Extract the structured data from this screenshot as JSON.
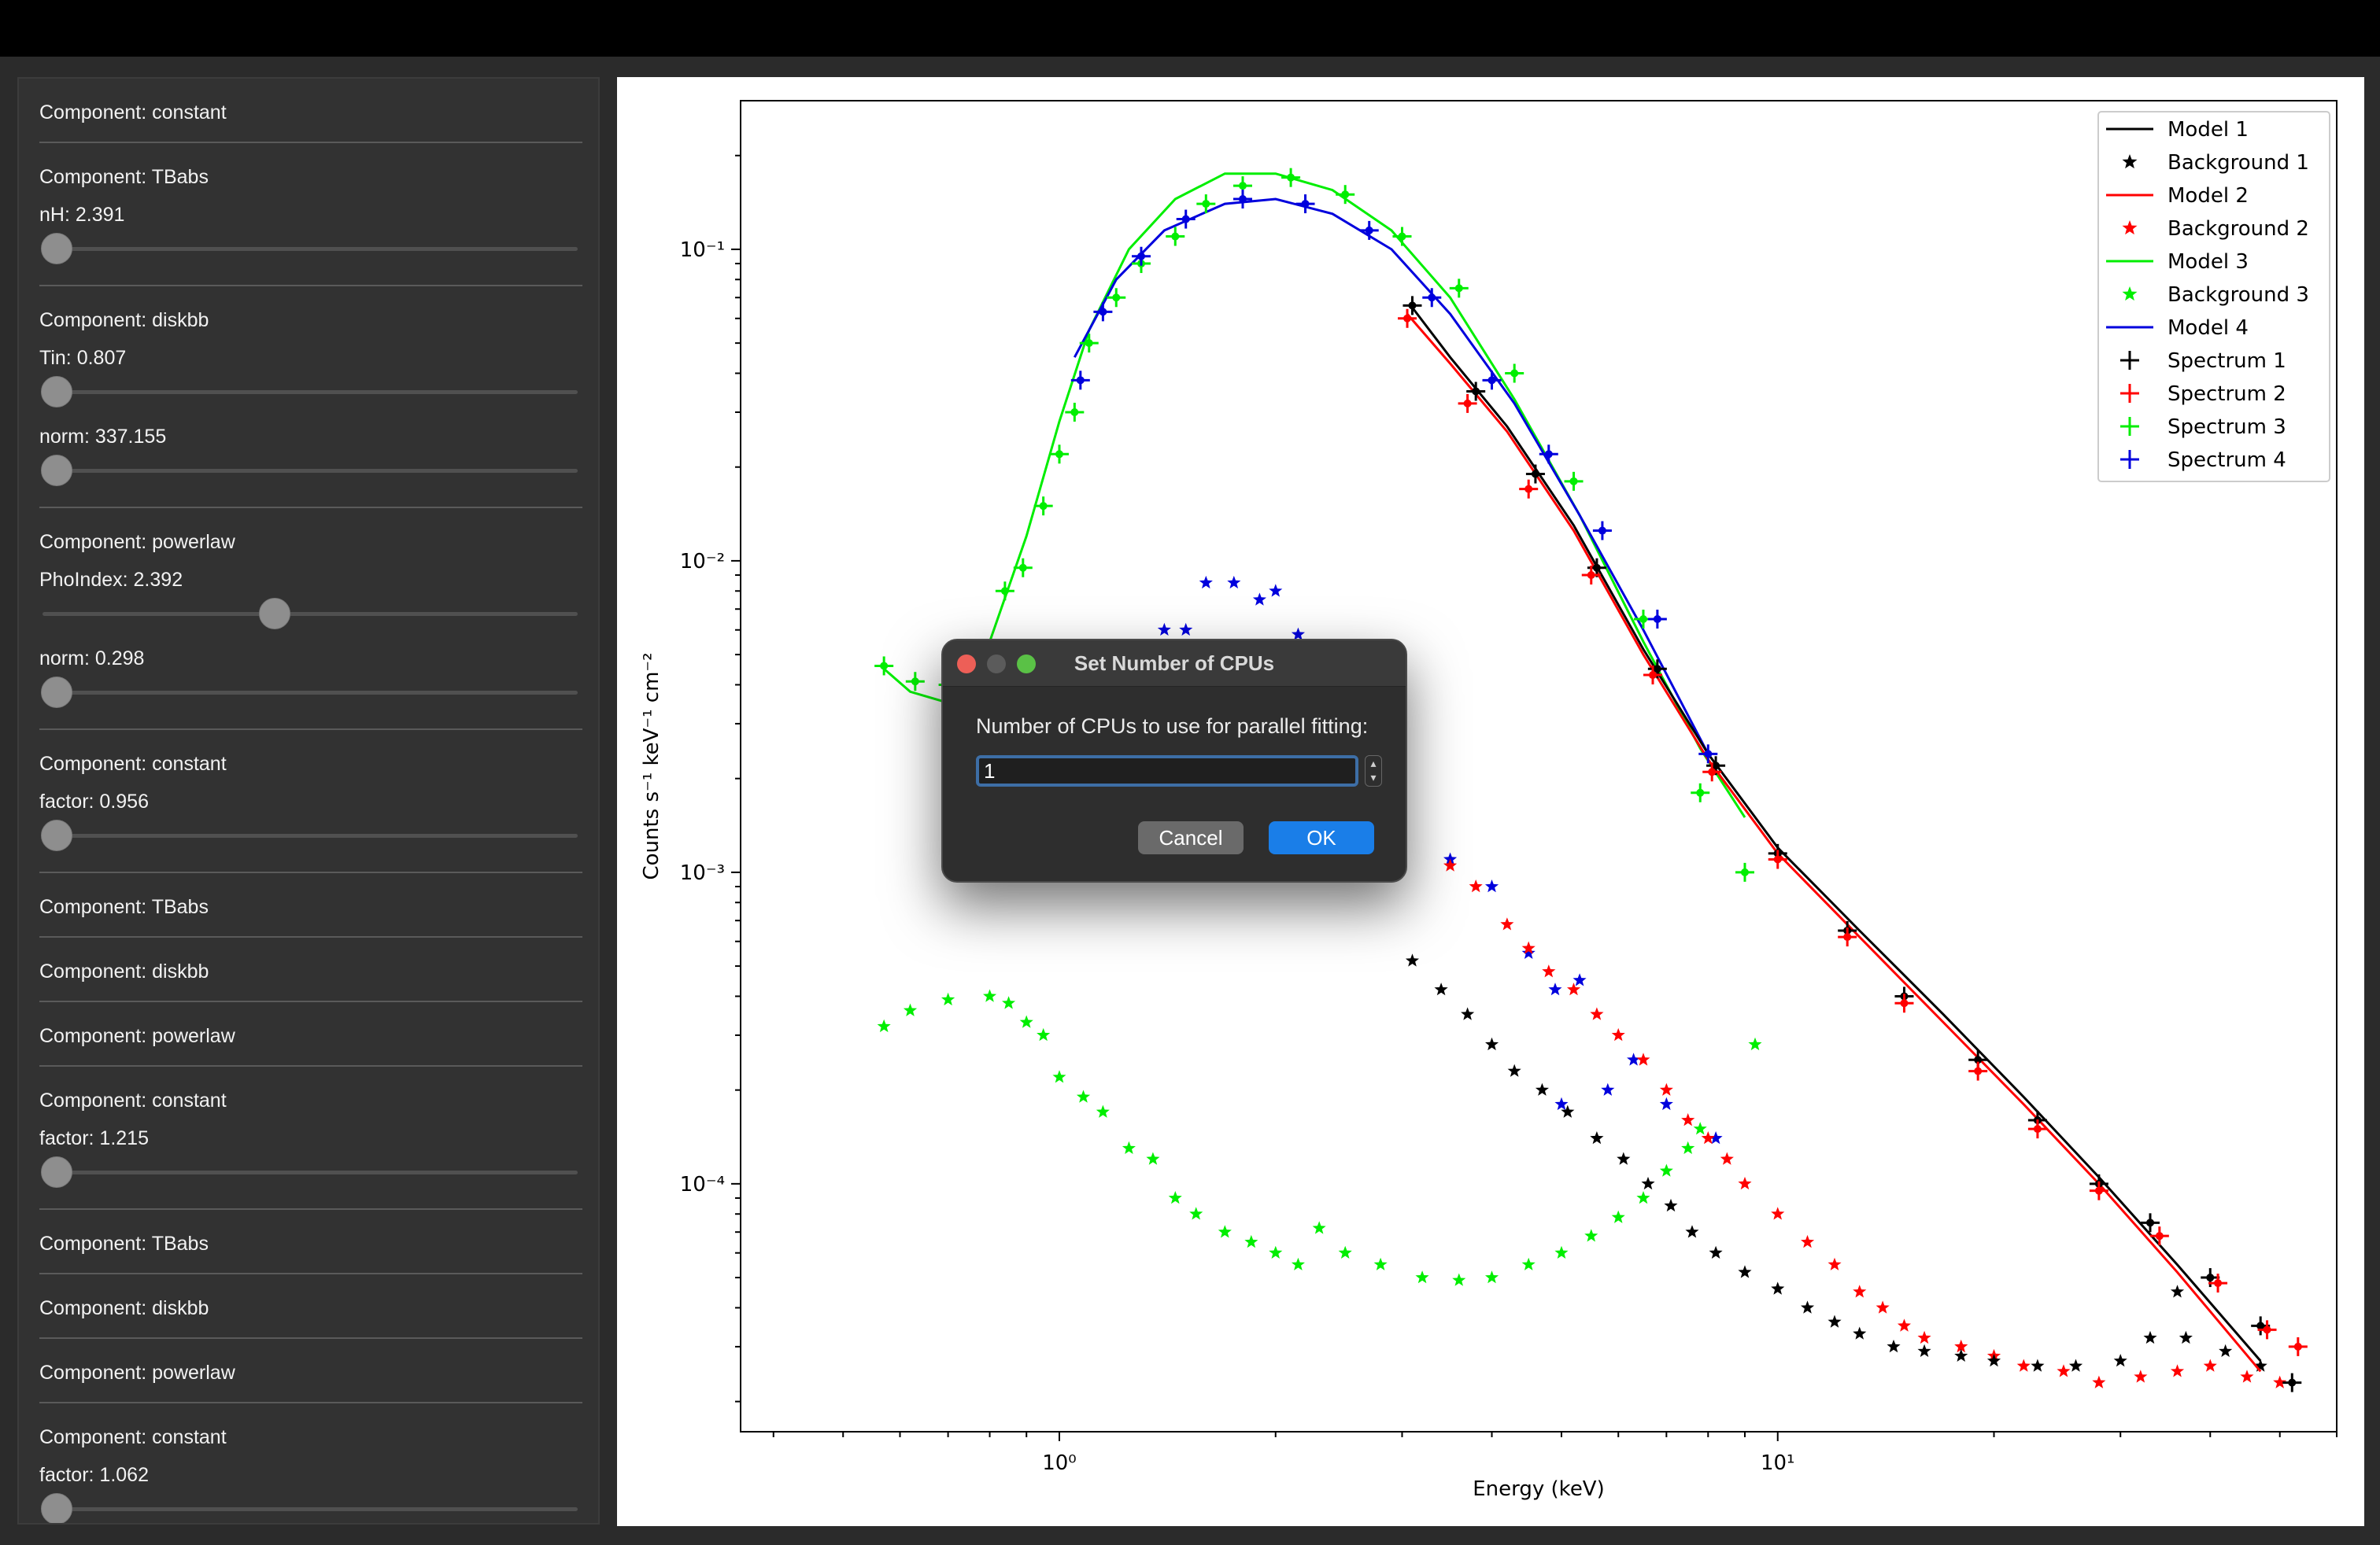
{
  "sidebar": {
    "sections": [
      {
        "title": "Component: constant",
        "params": []
      },
      {
        "title": "Component: TBabs",
        "params": [
          {
            "label": "nH: 2.391",
            "position": 0.0
          }
        ]
      },
      {
        "title": "Component: diskbb",
        "params": [
          {
            "label": "Tin: 0.807",
            "position": 0.0
          },
          {
            "label": "norm: 337.155",
            "position": 0.0
          }
        ]
      },
      {
        "title": "Component: powerlaw",
        "params": [
          {
            "label": "PhoIndex: 2.392",
            "position": 0.43
          },
          {
            "label": "norm: 0.298",
            "position": 0.0
          }
        ]
      },
      {
        "title": "Component: constant",
        "params": [
          {
            "label": "factor: 0.956",
            "position": 0.0
          }
        ]
      },
      {
        "title": "Component: TBabs",
        "params": []
      },
      {
        "title": "Component: diskbb",
        "params": []
      },
      {
        "title": "Component: powerlaw",
        "params": []
      },
      {
        "title": "Component: constant",
        "params": [
          {
            "label": "factor: 1.215",
            "position": 0.0
          }
        ]
      },
      {
        "title": "Component: TBabs",
        "params": []
      },
      {
        "title": "Component: diskbb",
        "params": []
      },
      {
        "title": "Component: powerlaw",
        "params": []
      },
      {
        "title": "Component: constant",
        "params": [
          {
            "label": "factor: 1.062",
            "position": 0.0
          }
        ]
      }
    ]
  },
  "chart_data": {
    "type": "scatter",
    "xlabel": "Energy (keV)",
    "ylabel": "Counts s⁻¹ keV⁻¹ cm⁻²",
    "xscale": "log",
    "yscale": "log",
    "xlim": [
      0.36,
      60
    ],
    "ylim": [
      1.6e-05,
      0.3
    ],
    "xticks": [
      {
        "value": 1,
        "label": "10⁰"
      },
      {
        "value": 10,
        "label": "10¹"
      }
    ],
    "yticks": [
      {
        "value": 0.1,
        "label": "10⁻¹"
      },
      {
        "value": 0.01,
        "label": "10⁻²"
      },
      {
        "value": 0.001,
        "label": "10⁻³"
      },
      {
        "value": 0.0001,
        "label": "10⁻⁴"
      }
    ],
    "legend_position": "top-right",
    "legend": [
      {
        "label": "Model 1",
        "kind": "line",
        "color": "#000000"
      },
      {
        "label": "Background 1",
        "kind": "star",
        "color": "#000000"
      },
      {
        "label": "Model 2",
        "kind": "line",
        "color": "#ff0000"
      },
      {
        "label": "Background 2",
        "kind": "star",
        "color": "#ff0000"
      },
      {
        "label": "Model 3",
        "kind": "line",
        "color": "#00ee00"
      },
      {
        "label": "Background 3",
        "kind": "star",
        "color": "#00ee00"
      },
      {
        "label": "Model 4",
        "kind": "line",
        "color": "#0000dd"
      },
      {
        "label": "Spectrum 1",
        "kind": "cross",
        "color": "#000000"
      },
      {
        "label": "Spectrum 2",
        "kind": "cross",
        "color": "#ff0000"
      },
      {
        "label": "Spectrum 3",
        "kind": "cross",
        "color": "#00ee00"
      },
      {
        "label": "Spectrum 4",
        "kind": "cross",
        "color": "#0000dd"
      }
    ],
    "models": [
      {
        "name": "Model 3",
        "color": "#00ee00",
        "points": [
          [
            0.57,
            0.0045
          ],
          [
            0.62,
            0.0038
          ],
          [
            0.7,
            0.0035
          ],
          [
            0.8,
            0.0055
          ],
          [
            0.9,
            0.012
          ],
          [
            1.0,
            0.028
          ],
          [
            1.1,
            0.055
          ],
          [
            1.25,
            0.1
          ],
          [
            1.45,
            0.145
          ],
          [
            1.7,
            0.175
          ],
          [
            2.0,
            0.175
          ],
          [
            2.4,
            0.155
          ],
          [
            2.9,
            0.115
          ],
          [
            3.5,
            0.07
          ],
          [
            4.3,
            0.033
          ],
          [
            5.3,
            0.014
          ],
          [
            6.5,
            0.0055
          ],
          [
            7.8,
            0.0025
          ],
          [
            9.0,
            0.0015
          ]
        ]
      },
      {
        "name": "Model 4",
        "color": "#0000dd",
        "points": [
          [
            1.05,
            0.045
          ],
          [
            1.2,
            0.08
          ],
          [
            1.4,
            0.115
          ],
          [
            1.7,
            0.14
          ],
          [
            2.0,
            0.145
          ],
          [
            2.4,
            0.13
          ],
          [
            2.9,
            0.1
          ],
          [
            3.5,
            0.062
          ],
          [
            4.3,
            0.032
          ],
          [
            5.3,
            0.014
          ],
          [
            6.5,
            0.006
          ],
          [
            8.0,
            0.0024
          ]
        ]
      },
      {
        "name": "Model 1",
        "color": "#000000",
        "points": [
          [
            3.1,
            0.065
          ],
          [
            3.5,
            0.045
          ],
          [
            4.2,
            0.027
          ],
          [
            5.2,
            0.013
          ],
          [
            6.5,
            0.0052
          ],
          [
            8.0,
            0.0024
          ],
          [
            10,
            0.0012
          ],
          [
            13,
            0.00065
          ],
          [
            17,
            0.00035
          ],
          [
            22,
            0.00019
          ],
          [
            28,
            0.000105
          ],
          [
            36,
            5.5e-05
          ],
          [
            47,
            2.7e-05
          ]
        ]
      },
      {
        "name": "Model 2",
        "color": "#ff0000",
        "points": [
          [
            3.05,
            0.062
          ],
          [
            3.5,
            0.043
          ],
          [
            4.2,
            0.026
          ],
          [
            5.2,
            0.0125
          ],
          [
            6.5,
            0.005
          ],
          [
            8.0,
            0.0023
          ],
          [
            10,
            0.00115
          ],
          [
            13,
            0.00062
          ],
          [
            17,
            0.00033
          ],
          [
            22,
            0.00018
          ],
          [
            28,
            0.0001
          ],
          [
            36,
            5.2e-05
          ],
          [
            47,
            2.5e-05
          ]
        ]
      }
    ],
    "spectra": [
      {
        "name": "Spectrum 3",
        "color": "#00ee00",
        "points": [
          [
            0.57,
            0.0046
          ],
          [
            0.63,
            0.0041
          ],
          [
            0.7,
            0.004
          ],
          [
            0.78,
            0.0047
          ],
          [
            0.84,
            0.008
          ],
          [
            0.89,
            0.0095
          ],
          [
            0.95,
            0.015
          ],
          [
            1.0,
            0.022
          ],
          [
            1.05,
            0.03
          ],
          [
            1.1,
            0.05
          ],
          [
            1.2,
            0.07
          ],
          [
            1.3,
            0.09
          ],
          [
            1.45,
            0.11
          ],
          [
            1.6,
            0.14
          ],
          [
            1.8,
            0.16
          ],
          [
            2.1,
            0.17
          ],
          [
            2.5,
            0.15
          ],
          [
            3.0,
            0.11
          ],
          [
            3.6,
            0.075
          ],
          [
            4.3,
            0.04
          ],
          [
            5.2,
            0.018
          ],
          [
            6.5,
            0.0065
          ],
          [
            7.8,
            0.0018
          ],
          [
            9.0,
            0.001
          ]
        ]
      },
      {
        "name": "Spectrum 4",
        "color": "#0000dd",
        "points": [
          [
            1.07,
            0.038
          ],
          [
            1.15,
            0.063
          ],
          [
            1.3,
            0.095
          ],
          [
            1.5,
            0.125
          ],
          [
            1.8,
            0.145
          ],
          [
            2.2,
            0.14
          ],
          [
            2.7,
            0.115
          ],
          [
            3.3,
            0.07
          ],
          [
            4.0,
            0.038
          ],
          [
            4.8,
            0.022
          ],
          [
            5.7,
            0.0125
          ],
          [
            6.8,
            0.0065
          ],
          [
            8.0,
            0.0024
          ]
        ]
      },
      {
        "name": "Spectrum 1",
        "color": "#000000",
        "points": [
          [
            3.1,
            0.066
          ],
          [
            3.8,
            0.035
          ],
          [
            4.6,
            0.019
          ],
          [
            5.6,
            0.0095
          ],
          [
            6.8,
            0.0045
          ],
          [
            8.2,
            0.0022
          ],
          [
            10,
            0.00115
          ],
          [
            12.5,
            0.00065
          ],
          [
            15,
            0.0004
          ],
          [
            19,
            0.00025
          ],
          [
            23,
            0.00016
          ],
          [
            28,
            0.0001
          ],
          [
            33,
            7.5e-05
          ],
          [
            40,
            5e-05
          ],
          [
            47,
            3.5e-05
          ],
          [
            52,
            2.3e-05
          ]
        ]
      },
      {
        "name": "Spectrum 2",
        "color": "#ff0000",
        "points": [
          [
            3.05,
            0.06
          ],
          [
            3.7,
            0.032
          ],
          [
            4.5,
            0.017
          ],
          [
            5.5,
            0.009
          ],
          [
            6.7,
            0.0043
          ],
          [
            8.1,
            0.0021
          ],
          [
            10,
            0.0011
          ],
          [
            12.5,
            0.00062
          ],
          [
            15,
            0.00038
          ],
          [
            19,
            0.00023
          ],
          [
            23,
            0.00015
          ],
          [
            28,
            9.5e-05
          ],
          [
            34,
            6.8e-05
          ],
          [
            41,
            4.8e-05
          ],
          [
            48,
            3.4e-05
          ],
          [
            53,
            3e-05
          ]
        ]
      }
    ],
    "backgrounds": [
      {
        "name": "Background 3",
        "color": "#00ee00",
        "points": [
          [
            0.57,
            0.00032
          ],
          [
            0.62,
            0.00036
          ],
          [
            0.7,
            0.00039
          ],
          [
            0.8,
            0.0004
          ],
          [
            0.85,
            0.00038
          ],
          [
            0.9,
            0.00033
          ],
          [
            0.95,
            0.0003
          ],
          [
            1.0,
            0.00022
          ],
          [
            1.08,
            0.00019
          ],
          [
            1.15,
            0.00017
          ],
          [
            1.25,
            0.00013
          ],
          [
            1.35,
            0.00012
          ],
          [
            1.45,
            9e-05
          ],
          [
            1.55,
            8e-05
          ],
          [
            1.7,
            7e-05
          ],
          [
            1.85,
            6.5e-05
          ],
          [
            2.0,
            6e-05
          ],
          [
            2.15,
            5.5e-05
          ],
          [
            2.3,
            7.2e-05
          ],
          [
            2.5,
            6e-05
          ],
          [
            2.8,
            5.5e-05
          ],
          [
            3.2,
            5e-05
          ],
          [
            3.6,
            4.9e-05
          ],
          [
            4.0,
            5e-05
          ],
          [
            4.5,
            5.5e-05
          ],
          [
            5.0,
            6e-05
          ],
          [
            5.5,
            6.8e-05
          ],
          [
            6.0,
            7.8e-05
          ],
          [
            6.5,
            9e-05
          ],
          [
            7.0,
            0.00011
          ],
          [
            7.5,
            0.00013
          ],
          [
            7.8,
            0.00015
          ],
          [
            9.3,
            0.00028
          ]
        ]
      },
      {
        "name": "Background 4",
        "color": "#0000dd",
        "points": [
          [
            1.4,
            0.006
          ],
          [
            1.5,
            0.006
          ],
          [
            1.6,
            0.0085
          ],
          [
            1.75,
            0.0085
          ],
          [
            1.9,
            0.0075
          ],
          [
            2.0,
            0.008
          ],
          [
            2.15,
            0.0058
          ],
          [
            3.5,
            0.0011
          ],
          [
            4.0,
            0.0009
          ],
          [
            4.5,
            0.00055
          ],
          [
            4.9,
            0.00042
          ],
          [
            5.3,
            0.00045
          ],
          [
            5.0,
            0.00018
          ],
          [
            5.8,
            0.0002
          ],
          [
            6.3,
            0.00025
          ],
          [
            7.0,
            0.00018
          ],
          [
            8.2,
            0.00014
          ]
        ]
      },
      {
        "name": "Background 2",
        "color": "#ff0000",
        "points": [
          [
            3.5,
            0.00105
          ],
          [
            3.8,
            0.0009
          ],
          [
            4.2,
            0.00068
          ],
          [
            4.5,
            0.00057
          ],
          [
            4.8,
            0.00048
          ],
          [
            5.2,
            0.00042
          ],
          [
            5.6,
            0.00035
          ],
          [
            6.0,
            0.0003
          ],
          [
            6.5,
            0.00025
          ],
          [
            7.0,
            0.0002
          ],
          [
            7.5,
            0.00016
          ],
          [
            8.0,
            0.00014
          ],
          [
            8.5,
            0.00012
          ],
          [
            9.0,
            0.0001
          ],
          [
            10,
            8e-05
          ],
          [
            11,
            6.5e-05
          ],
          [
            12,
            5.5e-05
          ],
          [
            13,
            4.5e-05
          ],
          [
            14,
            4e-05
          ],
          [
            15,
            3.5e-05
          ],
          [
            16,
            3.2e-05
          ],
          [
            18,
            3e-05
          ],
          [
            20,
            2.8e-05
          ],
          [
            22,
            2.6e-05
          ],
          [
            25,
            2.5e-05
          ],
          [
            28,
            2.3e-05
          ],
          [
            32,
            2.4e-05
          ],
          [
            36,
            2.5e-05
          ],
          [
            40,
            2.6e-05
          ],
          [
            45,
            2.4e-05
          ],
          [
            50,
            2.3e-05
          ]
        ]
      },
      {
        "name": "Background 1",
        "color": "#000000",
        "points": [
          [
            3.1,
            0.00052
          ],
          [
            3.4,
            0.00042
          ],
          [
            3.7,
            0.00035
          ],
          [
            4.0,
            0.00028
          ],
          [
            4.3,
            0.00023
          ],
          [
            4.7,
            0.0002
          ],
          [
            5.1,
            0.00017
          ],
          [
            5.6,
            0.00014
          ],
          [
            6.1,
            0.00012
          ],
          [
            6.6,
            0.0001
          ],
          [
            7.1,
            8.5e-05
          ],
          [
            7.6,
            7e-05
          ],
          [
            8.2,
            6e-05
          ],
          [
            9.0,
            5.2e-05
          ],
          [
            10,
            4.6e-05
          ],
          [
            11,
            4e-05
          ],
          [
            12,
            3.6e-05
          ],
          [
            13,
            3.3e-05
          ],
          [
            14.5,
            3e-05
          ],
          [
            16,
            2.9e-05
          ],
          [
            18,
            2.8e-05
          ],
          [
            20,
            2.7e-05
          ],
          [
            23,
            2.6e-05
          ],
          [
            26,
            2.6e-05
          ],
          [
            30,
            2.7e-05
          ],
          [
            33,
            3.2e-05
          ],
          [
            37,
            3.2e-05
          ],
          [
            42,
            2.9e-05
          ],
          [
            47,
            2.6e-05
          ],
          [
            36,
            4.5e-05
          ]
        ]
      }
    ]
  },
  "dialog": {
    "title": "Set Number of CPUs",
    "prompt": "Number of CPUs to use for parallel fitting:",
    "input_value": "1",
    "cancel_label": "Cancel",
    "ok_label": "OK",
    "accent_color": "#1a7ee8"
  }
}
